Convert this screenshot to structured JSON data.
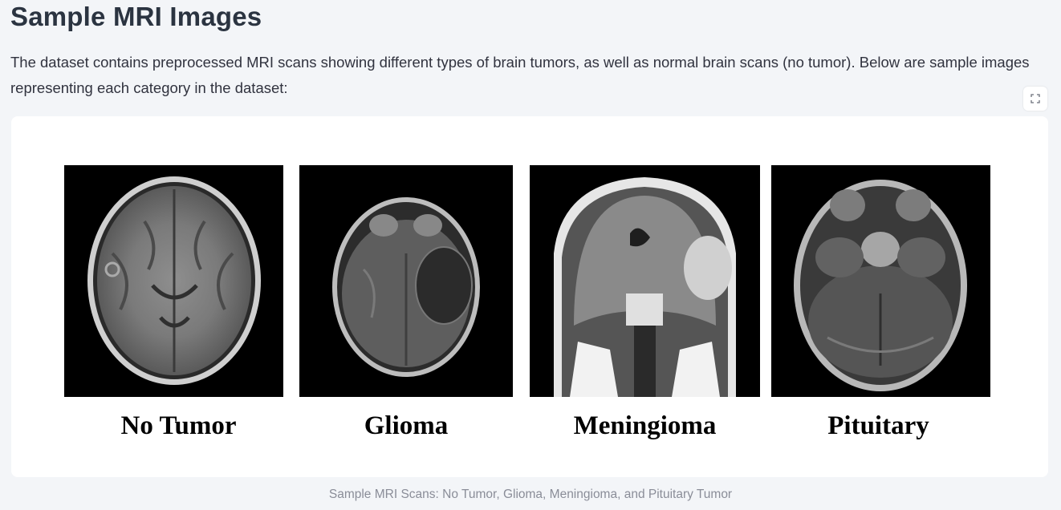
{
  "header": {
    "title": "Sample MRI Images",
    "description": "The dataset contains preprocessed MRI scans showing different types of brain tumors, as well as normal brain scans (no tumor). Below are sample images representing each category in the dataset:"
  },
  "toolbar": {
    "fullscreen_icon": "fullscreen-icon"
  },
  "figure": {
    "labels": [
      "No Tumor",
      "Glioma",
      "Meningioma",
      "Pituitary"
    ],
    "caption": "Sample MRI Scans: No Tumor, Glioma, Meningioma, and Pituitary Tumor"
  },
  "colors": {
    "page_background": "#f3f5f8",
    "card_background": "#ffffff",
    "title_color": "#2b3441",
    "caption_color": "#8a8d98"
  }
}
